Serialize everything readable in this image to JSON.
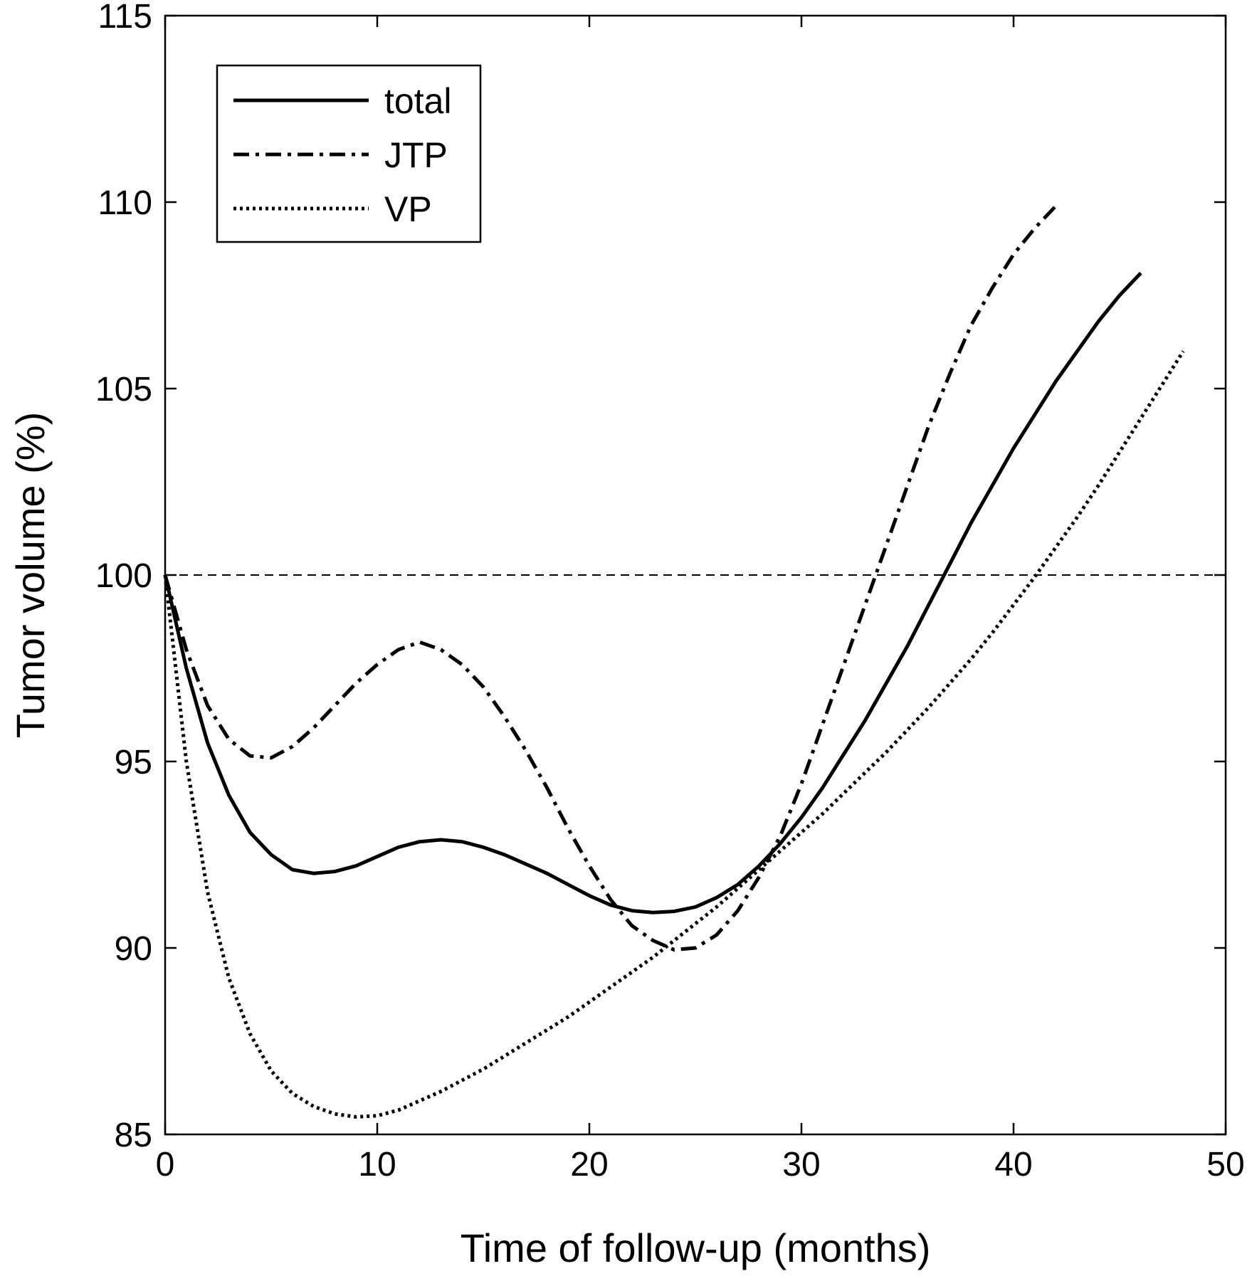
{
  "chart_data": {
    "type": "line",
    "xlabel": "Time of follow-up (months)",
    "ylabel": "Tumor volume (%)",
    "xlim": [
      0,
      50
    ],
    "ylim": [
      85,
      115
    ],
    "xticks": [
      "0",
      "10",
      "20",
      "30",
      "40",
      "50"
    ],
    "yticks": [
      "85",
      "90",
      "95",
      "100",
      "105",
      "110",
      "115"
    ],
    "grid": false,
    "legend_position": "top-left",
    "reference_line": {
      "y": 100,
      "style": "dashed"
    },
    "series": [
      {
        "name": "total",
        "style": "solid",
        "color": "#000000",
        "x": [
          0,
          1,
          2,
          3,
          4,
          5,
          6,
          7,
          8,
          9,
          10,
          11,
          12,
          13,
          14,
          15,
          16,
          17,
          18,
          19,
          20,
          21,
          22,
          23,
          24,
          25,
          26,
          27,
          28,
          29,
          30,
          31,
          32,
          33,
          34,
          35,
          36,
          37,
          38,
          39,
          40,
          41,
          42,
          43,
          44,
          45,
          46
        ],
        "y": [
          100,
          97.5,
          95.5,
          94.1,
          93.1,
          92.5,
          92.1,
          92.0,
          92.05,
          92.2,
          92.45,
          92.7,
          92.85,
          92.9,
          92.85,
          92.7,
          92.5,
          92.25,
          92.0,
          91.7,
          91.4,
          91.15,
          91.0,
          90.95,
          90.98,
          91.1,
          91.35,
          91.7,
          92.2,
          92.8,
          93.5,
          94.3,
          95.2,
          96.1,
          97.1,
          98.1,
          99.2,
          100.3,
          101.4,
          102.4,
          103.4,
          104.3,
          105.2,
          106.0,
          106.8,
          107.5,
          108.1
        ]
      },
      {
        "name": "JTP",
        "style": "dashdot",
        "color": "#000000",
        "x": [
          0,
          1,
          2,
          3,
          4,
          5,
          6,
          7,
          8,
          9,
          10,
          11,
          12,
          13,
          14,
          15,
          16,
          17,
          18,
          19,
          20,
          21,
          22,
          23,
          24,
          25,
          26,
          27,
          28,
          29,
          30,
          31,
          32,
          33,
          34,
          35,
          36,
          37,
          38,
          39,
          40,
          41,
          42
        ],
        "y": [
          100,
          98.0,
          96.5,
          95.6,
          95.15,
          95.1,
          95.4,
          95.9,
          96.5,
          97.1,
          97.6,
          98.0,
          98.2,
          98.0,
          97.6,
          97.0,
          96.2,
          95.3,
          94.3,
          93.2,
          92.2,
          91.3,
          90.6,
          90.2,
          89.95,
          90.0,
          90.35,
          91.0,
          91.9,
          93.0,
          94.4,
          96.0,
          97.6,
          99.2,
          100.8,
          102.4,
          104.0,
          105.4,
          106.7,
          107.7,
          108.6,
          109.3,
          109.9
        ]
      },
      {
        "name": "VP",
        "style": "dotted",
        "color": "#000000",
        "x": [
          0,
          1,
          2,
          3,
          4,
          5,
          6,
          7,
          8,
          9,
          10,
          11,
          12,
          13,
          14,
          15,
          16,
          17,
          18,
          19,
          20,
          21,
          22,
          23,
          24,
          25,
          26,
          27,
          28,
          29,
          30,
          31,
          32,
          33,
          34,
          35,
          36,
          37,
          38,
          39,
          40,
          41,
          42,
          43,
          44,
          45,
          46,
          47,
          48
        ],
        "y": [
          100,
          95.0,
          91.5,
          89.2,
          87.7,
          86.7,
          86.1,
          85.75,
          85.55,
          85.47,
          85.5,
          85.65,
          85.9,
          86.15,
          86.45,
          86.75,
          87.1,
          87.45,
          87.8,
          88.15,
          88.55,
          88.95,
          89.35,
          89.75,
          90.2,
          90.65,
          91.1,
          91.6,
          92.1,
          92.6,
          93.1,
          93.6,
          94.15,
          94.7,
          95.25,
          95.85,
          96.45,
          97.1,
          97.75,
          98.45,
          99.2,
          99.95,
          100.75,
          101.55,
          102.4,
          103.3,
          104.2,
          105.1,
          106.0
        ]
      }
    ]
  }
}
